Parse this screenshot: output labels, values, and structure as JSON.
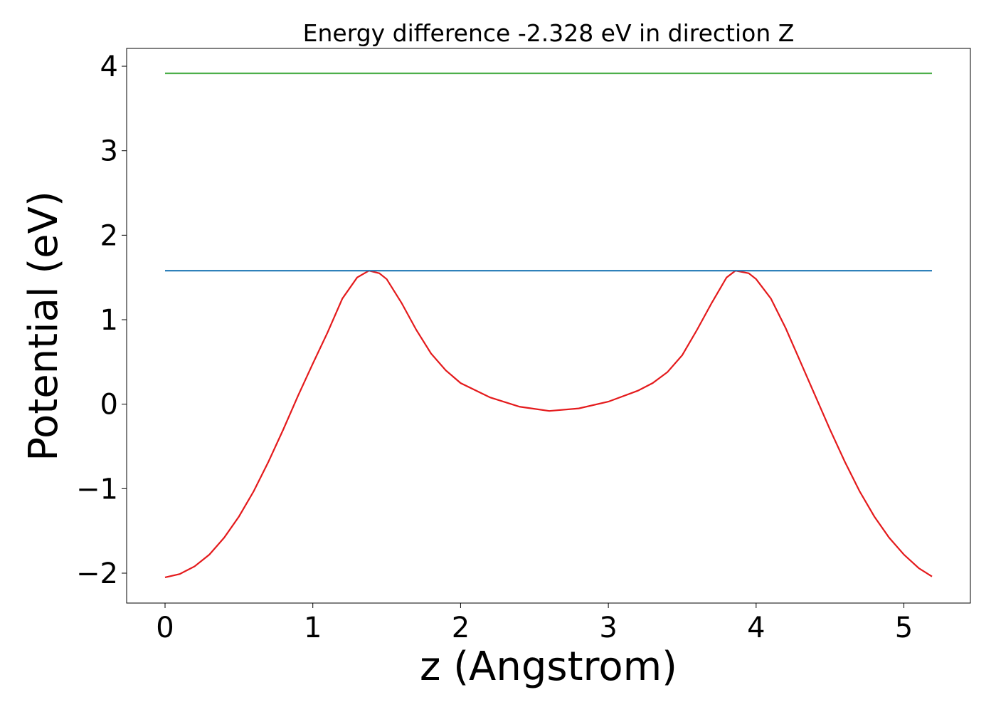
{
  "chart_data": {
    "type": "line",
    "title": "Energy difference -2.328 eV in direction Z",
    "xlabel": "z (Angstrom)",
    "ylabel": "Potential (eV)",
    "xlim": [
      -0.26,
      5.45
    ],
    "ylim": [
      -2.354,
      4.211
    ],
    "xticks": [
      0,
      1,
      2,
      3,
      4,
      5
    ],
    "yticks": [
      {
        "value": -2,
        "label": "−2"
      },
      {
        "value": -1,
        "label": "−1"
      },
      0,
      1,
      2,
      3,
      4
    ],
    "series": [
      {
        "color": "#e41a1c",
        "x": [
          0,
          0.1,
          0.2,
          0.3,
          0.4,
          0.5,
          0.6,
          0.7,
          0.8,
          0.9,
          1.0,
          1.1,
          1.2,
          1.3,
          1.38,
          1.45,
          1.5,
          1.6,
          1.7,
          1.8,
          1.9,
          2.0,
          2.2,
          2.4,
          2.6,
          2.8,
          3.0,
          3.2,
          3.3,
          3.4,
          3.5,
          3.6,
          3.7,
          3.8,
          3.86,
          3.95,
          4.0,
          4.1,
          4.2,
          4.3,
          4.4,
          4.5,
          4.6,
          4.7,
          4.8,
          4.9,
          5.0,
          5.1,
          5.19
        ],
        "values": [
          -2.05,
          -2.01,
          -1.92,
          -1.78,
          -1.58,
          -1.33,
          -1.03,
          -0.68,
          -0.3,
          0.1,
          0.48,
          0.85,
          1.25,
          1.5,
          1.58,
          1.55,
          1.48,
          1.2,
          0.88,
          0.6,
          0.4,
          0.25,
          0.08,
          -0.03,
          -0.08,
          -0.05,
          0.03,
          0.16,
          0.25,
          0.38,
          0.58,
          0.88,
          1.2,
          1.5,
          1.58,
          1.55,
          1.48,
          1.25,
          0.9,
          0.5,
          0.1,
          -0.3,
          -0.68,
          -1.03,
          -1.33,
          -1.58,
          -1.78,
          -1.94,
          -2.04
        ]
      },
      {
        "color": "#1f77b4",
        "x": [
          0,
          5.19
        ],
        "values": [
          1.58,
          1.58
        ]
      },
      {
        "color": "#4daf4a",
        "x": [
          0,
          5.19
        ],
        "values": [
          3.916,
          3.916
        ]
      }
    ]
  }
}
